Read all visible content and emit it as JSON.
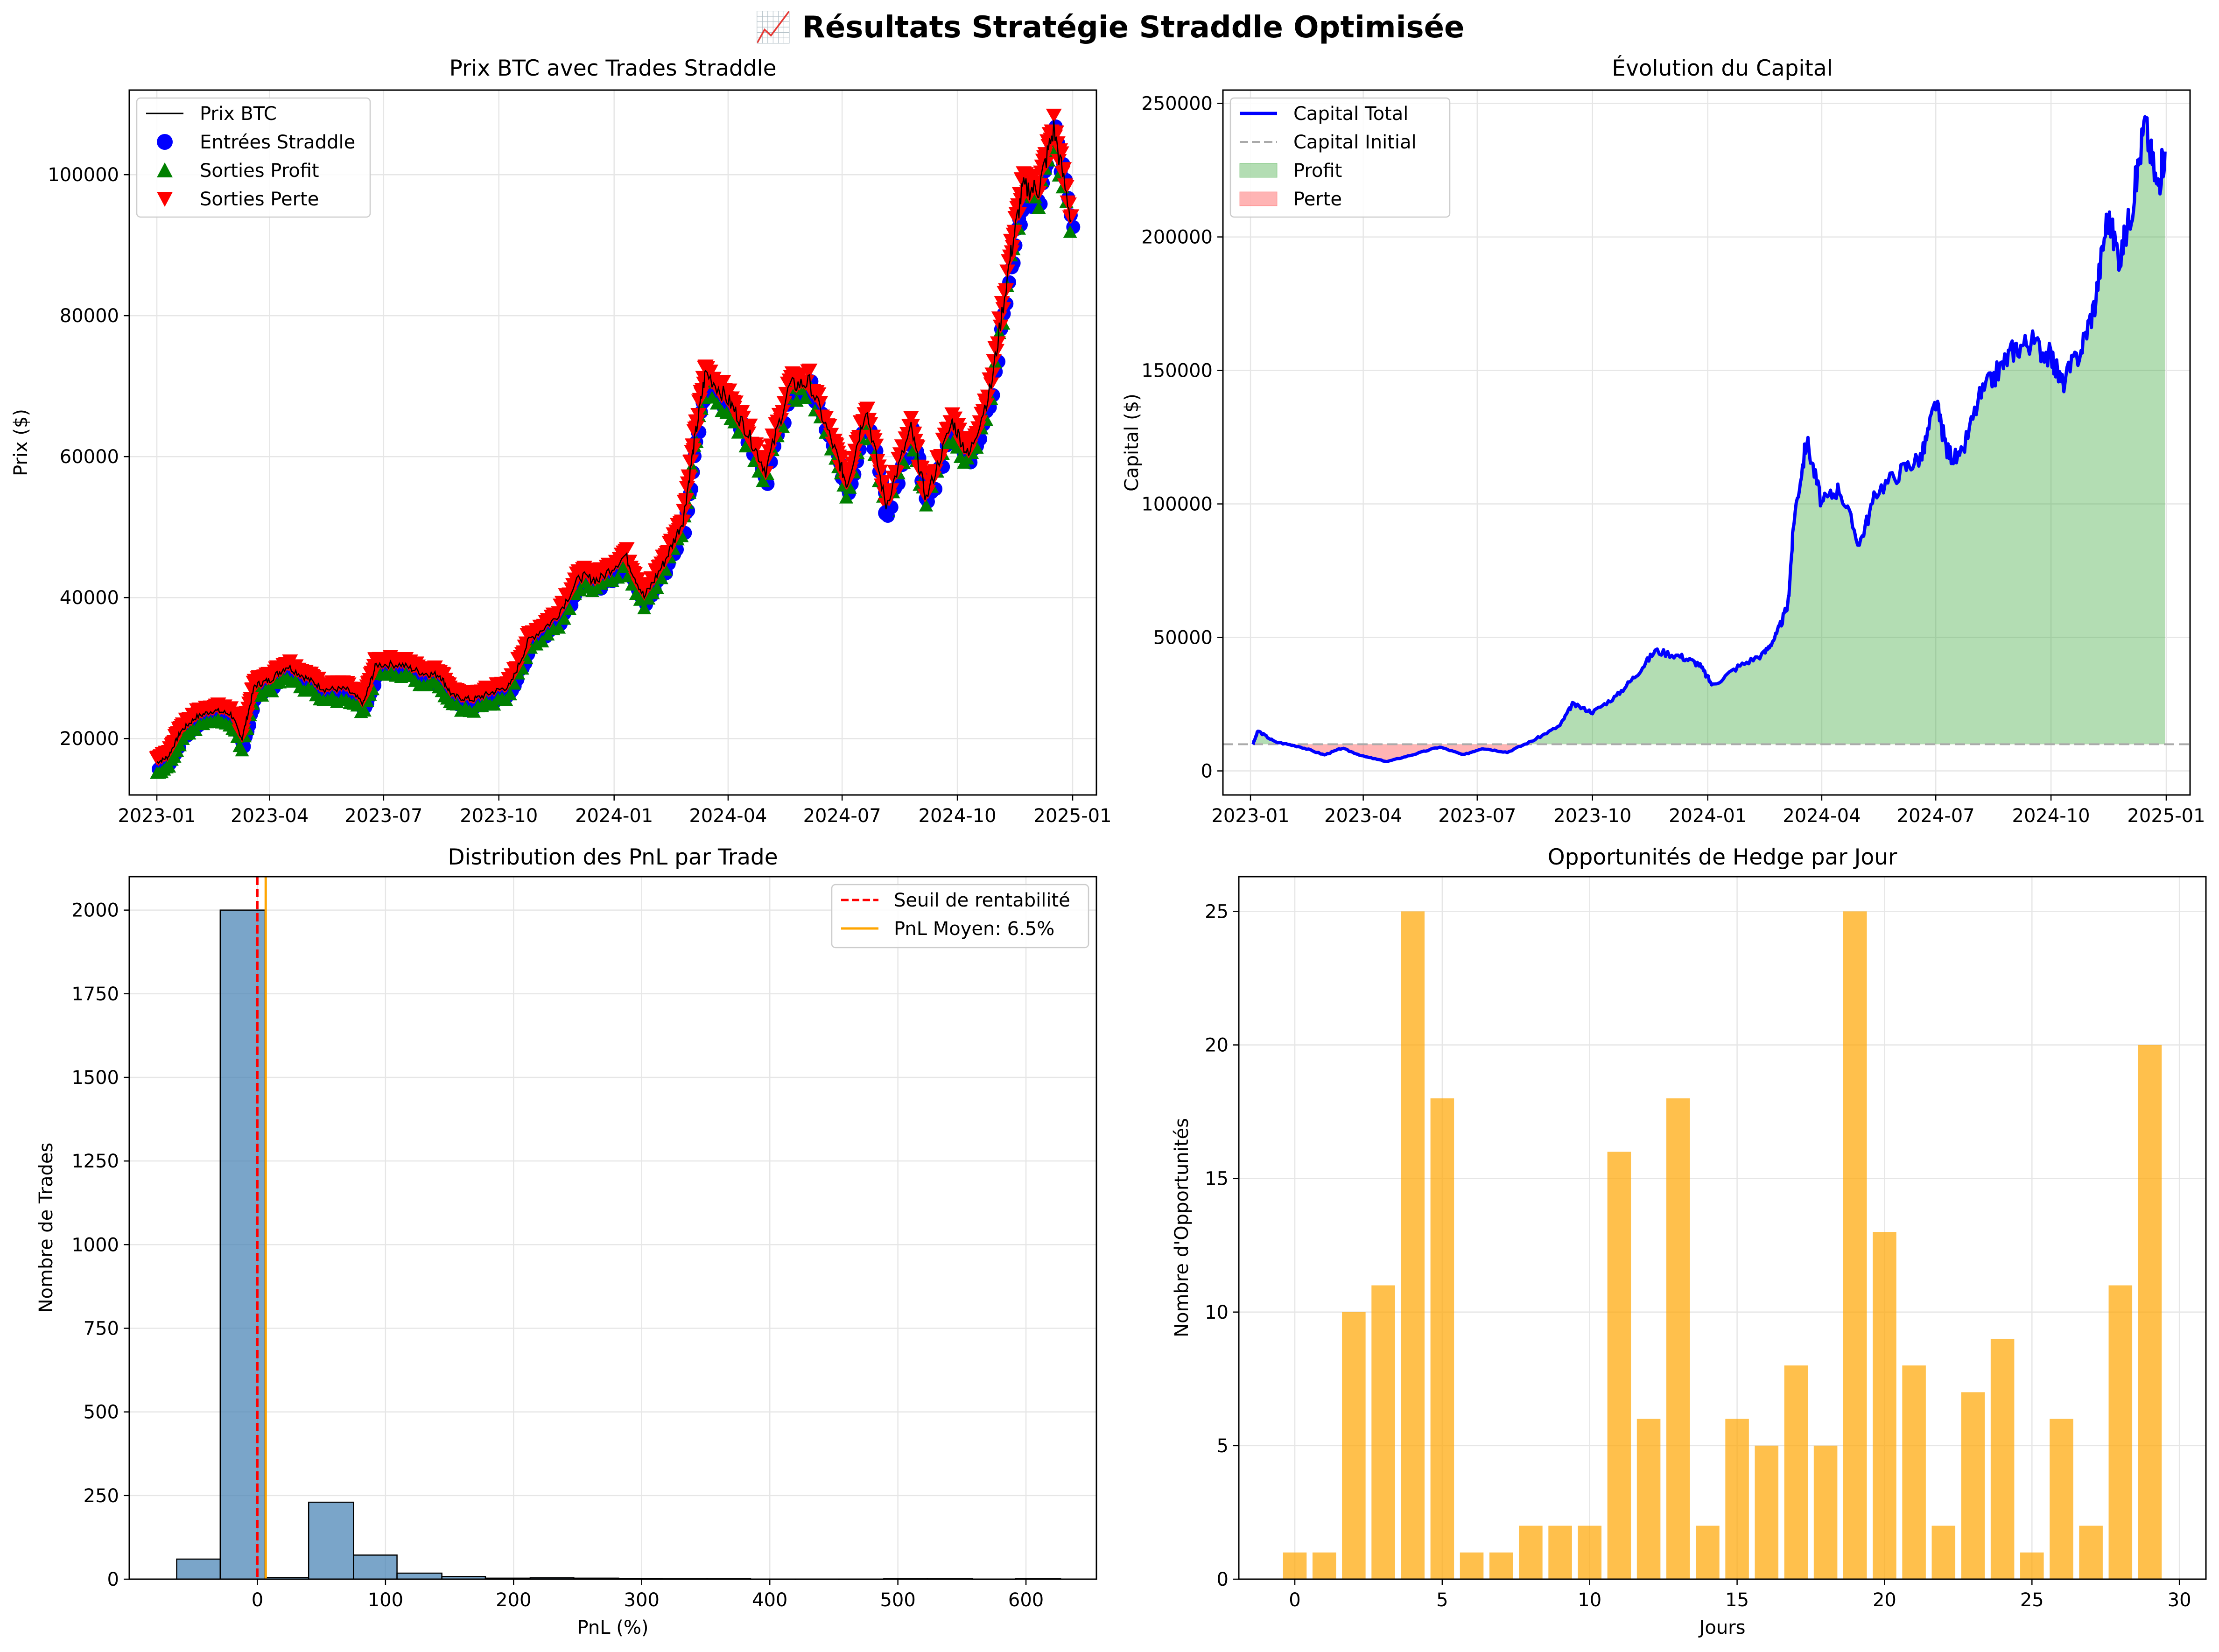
{
  "figure": {
    "title": "📈 Résultats Stratégie Straddle Optimisée"
  },
  "chart_data": [
    {
      "id": "price",
      "type": "line",
      "title": "Prix BTC avec Trades Straddle",
      "xlabel": "",
      "ylabel": "Prix ($)",
      "x_ticks": [
        "2023-01",
        "2023-04",
        "2023-07",
        "2023-10",
        "2024-01",
        "2024-04",
        "2024-07",
        "2024-10",
        "2025-01"
      ],
      "y_ticks": [
        20000,
        40000,
        60000,
        80000,
        100000
      ],
      "xlim": [
        "2022-12-10",
        "2025-01-20"
      ],
      "ylim": [
        12000,
        112000
      ],
      "grid": true,
      "legend_position": "upper-left",
      "series": [
        {
          "name": "Prix BTC",
          "kind": "line",
          "color": "#000000",
          "points": [
            [
              "2023-01-01",
              16600
            ],
            [
              "2023-01-10",
              17400
            ],
            [
              "2023-01-20",
              21000
            ],
            [
              "2023-02-01",
              23000
            ],
            [
              "2023-02-15",
              24000
            ],
            [
              "2023-03-01",
              23500
            ],
            [
              "2023-03-10",
              20000
            ],
            [
              "2023-03-20",
              27500
            ],
            [
              "2023-04-01",
              28300
            ],
            [
              "2023-04-15",
              30300
            ],
            [
              "2023-05-01",
              28500
            ],
            [
              "2023-05-15",
              27000
            ],
            [
              "2023-06-01",
              27000
            ],
            [
              "2023-06-15",
              25000
            ],
            [
              "2023-06-25",
              30500
            ],
            [
              "2023-07-15",
              30500
            ],
            [
              "2023-08-01",
              29300
            ],
            [
              "2023-08-15",
              29000
            ],
            [
              "2023-08-25",
              26000
            ],
            [
              "2023-09-10",
              25500
            ],
            [
              "2023-09-25",
              26500
            ],
            [
              "2023-10-10",
              27500
            ],
            [
              "2023-10-25",
              34000
            ],
            [
              "2023-11-15",
              37000
            ],
            [
              "2023-12-05",
              43000
            ],
            [
              "2023-12-20",
              42500
            ],
            [
              "2024-01-10",
              46000
            ],
            [
              "2024-01-25",
              40000
            ],
            [
              "2024-02-10",
              45000
            ],
            [
              "2024-02-25",
              51000
            ],
            [
              "2024-03-05",
              62000
            ],
            [
              "2024-03-14",
              72000
            ],
            [
              "2024-04-01",
              68000
            ],
            [
              "2024-04-15",
              64000
            ],
            [
              "2024-05-01",
              58000
            ],
            [
              "2024-05-20",
              70000
            ],
            [
              "2024-06-05",
              70500
            ],
            [
              "2024-06-25",
              61000
            ],
            [
              "2024-07-05",
              56000
            ],
            [
              "2024-07-20",
              67000
            ],
            [
              "2024-08-05",
              53000
            ],
            [
              "2024-08-25",
              64000
            ],
            [
              "2024-09-06",
              54000
            ],
            [
              "2024-09-27",
              65000
            ],
            [
              "2024-10-10",
              60000
            ],
            [
              "2024-10-28",
              70000
            ],
            [
              "2024-11-12",
              88000
            ],
            [
              "2024-11-22",
              98000
            ],
            [
              "2024-12-05",
              98000
            ],
            [
              "2024-12-17",
              106500
            ],
            [
              "2024-12-31",
              93500
            ]
          ]
        },
        {
          "name": "Entrées Straddle",
          "kind": "scatter",
          "marker": "circle",
          "color": "#0000ff"
        },
        {
          "name": "Sorties Profit",
          "kind": "scatter",
          "marker": "triangle-up",
          "color": "#008000"
        },
        {
          "name": "Sorties Perte",
          "kind": "scatter",
          "marker": "triangle-down",
          "color": "#ff0000"
        }
      ]
    },
    {
      "id": "capital",
      "type": "area",
      "title": "Évolution du Capital",
      "xlabel": "",
      "ylabel": "Capital ($)",
      "x_ticks": [
        "2023-01",
        "2023-04",
        "2023-07",
        "2023-10",
        "2024-01",
        "2024-04",
        "2024-07",
        "2024-10",
        "2025-01"
      ],
      "y_ticks": [
        0,
        50000,
        100000,
        150000,
        200000,
        250000
      ],
      "xlim": [
        "2022-12-10",
        "2025-01-20"
      ],
      "ylim": [
        -9000,
        255000
      ],
      "grid": true,
      "legend_position": "upper-left",
      "initial_capital": 10000,
      "series": [
        {
          "name": "Capital Total",
          "kind": "line",
          "color": "#0000ff",
          "points": [
            [
              "2023-01-03",
              10000
            ],
            [
              "2023-01-07",
              15000
            ],
            [
              "2023-01-20",
              11000
            ],
            [
              "2023-02-10",
              9000
            ],
            [
              "2023-03-01",
              6000
            ],
            [
              "2023-03-15",
              8500
            ],
            [
              "2023-04-01",
              5500
            ],
            [
              "2023-04-20",
              3500
            ],
            [
              "2023-05-10",
              6000
            ],
            [
              "2023-06-01",
              9000
            ],
            [
              "2023-06-20",
              6000
            ],
            [
              "2023-07-05",
              8500
            ],
            [
              "2023-07-25",
              7000
            ],
            [
              "2023-08-15",
              11500
            ],
            [
              "2023-09-05",
              17000
            ],
            [
              "2023-09-15",
              25000
            ],
            [
              "2023-10-01",
              22000
            ],
            [
              "2023-10-20",
              28000
            ],
            [
              "2023-11-05",
              36000
            ],
            [
              "2023-11-20",
              45000
            ],
            [
              "2023-12-10",
              43000
            ],
            [
              "2023-12-25",
              40000
            ],
            [
              "2024-01-05",
              32000
            ],
            [
              "2024-01-25",
              39000
            ],
            [
              "2024-02-15",
              44000
            ],
            [
              "2024-02-25",
              51000
            ],
            [
              "2024-03-05",
              62000
            ],
            [
              "2024-03-10",
              95000
            ],
            [
              "2024-03-20",
              124000
            ],
            [
              "2024-04-01",
              100000
            ],
            [
              "2024-04-15",
              106000
            ],
            [
              "2024-05-01",
              85000
            ],
            [
              "2024-05-15",
              105000
            ],
            [
              "2024-06-05",
              113000
            ],
            [
              "2024-06-20",
              118000
            ],
            [
              "2024-07-01",
              138000
            ],
            [
              "2024-07-10",
              120000
            ],
            [
              "2024-07-20",
              116000
            ],
            [
              "2024-08-05",
              140000
            ],
            [
              "2024-08-20",
              150000
            ],
            [
              "2024-09-01",
              158000
            ],
            [
              "2024-09-15",
              161000
            ],
            [
              "2024-10-01",
              155000
            ],
            [
              "2024-10-10",
              145000
            ],
            [
              "2024-10-25",
              158000
            ],
            [
              "2024-11-05",
              175000
            ],
            [
              "2024-11-15",
              208000
            ],
            [
              "2024-11-25",
              192000
            ],
            [
              "2024-12-05",
              212000
            ],
            [
              "2024-12-15",
              243000
            ],
            [
              "2024-12-25",
              218000
            ],
            [
              "2024-12-31",
              232000
            ]
          ]
        },
        {
          "name": "Capital Initial",
          "kind": "hline",
          "color": "#aaaaaa",
          "value": 10000
        },
        {
          "name": "Profit",
          "kind": "fill",
          "color": "#2ca02c"
        },
        {
          "name": "Perte",
          "kind": "fill",
          "color": "#ff4444"
        }
      ]
    },
    {
      "id": "pnl",
      "type": "bar",
      "title": "Distribution des PnL par Trade",
      "xlabel": "PnL (%)",
      "ylabel": "Nombre de Trades",
      "x_ticks": [
        0,
        100,
        200,
        300,
        400,
        500,
        600
      ],
      "y_ticks": [
        0,
        250,
        500,
        750,
        1000,
        1250,
        1500,
        1750,
        2000
      ],
      "xlim": [
        -100,
        655
      ],
      "ylim": [
        0,
        2100
      ],
      "grid": true,
      "legend_position": "upper-right",
      "bins": [
        [
          -63,
          -29,
          60
        ],
        [
          -29,
          6,
          2000
        ],
        [
          6,
          40,
          5
        ],
        [
          40,
          75,
          230
        ],
        [
          75,
          109,
          72
        ],
        [
          109,
          144,
          18
        ],
        [
          144,
          178,
          8
        ],
        [
          178,
          213,
          3
        ],
        [
          213,
          247,
          4
        ],
        [
          247,
          282,
          3
        ],
        [
          282,
          316,
          2
        ],
        [
          316,
          351,
          1
        ],
        [
          351,
          385,
          1
        ],
        [
          385,
          420,
          0
        ],
        [
          420,
          454,
          0
        ],
        [
          454,
          489,
          0
        ],
        [
          489,
          523,
          1
        ],
        [
          523,
          558,
          1
        ],
        [
          558,
          592,
          0
        ],
        [
          592,
          627,
          1
        ]
      ],
      "bar_color": "#4682b4",
      "lines": [
        {
          "name": "Seuil de rentabilité",
          "value": 0,
          "color": "#ff0000",
          "style": "dashed"
        },
        {
          "name": "PnL Moyen: 6.5%",
          "value": 6.5,
          "color": "#ffa500",
          "style": "solid"
        }
      ]
    },
    {
      "id": "hedge",
      "type": "bar",
      "title": "Opportunités de Hedge par Jour",
      "xlabel": "Jours",
      "ylabel": "Nombre d'Opportunités",
      "x_ticks": [
        0,
        5,
        10,
        15,
        20,
        25,
        30
      ],
      "y_ticks": [
        0,
        5,
        10,
        15,
        20,
        25
      ],
      "xlim": [
        -1.9,
        30.9
      ],
      "ylim": [
        0,
        26.3
      ],
      "grid": true,
      "categories": [
        0,
        1,
        2,
        3,
        4,
        5,
        6,
        7,
        8,
        9,
        10,
        11,
        12,
        13,
        14,
        15,
        16,
        17,
        18,
        19,
        20,
        21,
        22,
        23,
        24,
        25,
        26,
        27,
        28,
        29
      ],
      "values": [
        1,
        1,
        10,
        11,
        25,
        18,
        1,
        1,
        2,
        2,
        2,
        16,
        6,
        18,
        2,
        6,
        5,
        8,
        5,
        25,
        13,
        8,
        2,
        7,
        9,
        1,
        6,
        2,
        11,
        20
      ],
      "bar_color": "#ffa500"
    }
  ]
}
